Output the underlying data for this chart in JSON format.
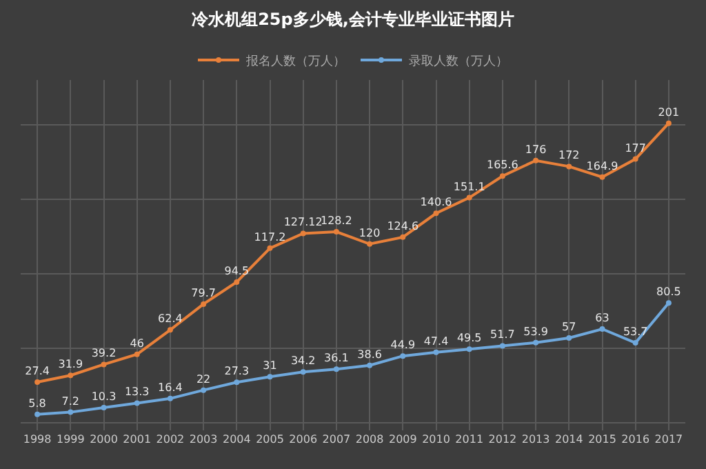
{
  "chart_data": {
    "type": "line",
    "title": "冷水机组25p多少钱,会计专业毕业证书图片",
    "categories": [
      "1998",
      "1999",
      "2000",
      "2001",
      "2002",
      "2003",
      "2004",
      "2005",
      "2006",
      "2007",
      "2008",
      "2009",
      "2010",
      "2011",
      "2012",
      "2013",
      "2014",
      "2015",
      "2016",
      "2017"
    ],
    "series": [
      {
        "name": "报名人数（万人）",
        "color": "#e8803a",
        "values": [
          27.4,
          31.9,
          39.2,
          46,
          62.4,
          79.7,
          94.5,
          117.2,
          127.12,
          128.2,
          120,
          124.6,
          140.6,
          151.1,
          165.6,
          176,
          172,
          164.9,
          177,
          201
        ]
      },
      {
        "name": "录取人数（万人）",
        "color": "#6fa8dc",
        "values": [
          5.8,
          7.2,
          10.3,
          13.3,
          16.4,
          22,
          27.3,
          31,
          34.2,
          36.1,
          38.6,
          44.9,
          47.4,
          49.5,
          51.7,
          53.9,
          57,
          63,
          53.7,
          80.5
        ]
      }
    ],
    "ylim": [
      -5,
      230
    ],
    "yticks": [
      {
        "value": 0,
        "label": null
      },
      {
        "value": 50,
        "label": null
      },
      {
        "value": 100,
        "label": null
      },
      {
        "value": 150,
        "label": null
      },
      {
        "value": 200,
        "label": null
      }
    ],
    "tick_labels": "x",
    "grid": true,
    "legend": "top",
    "marker": "circle",
    "line_style": "solid",
    "data_labels": true
  }
}
